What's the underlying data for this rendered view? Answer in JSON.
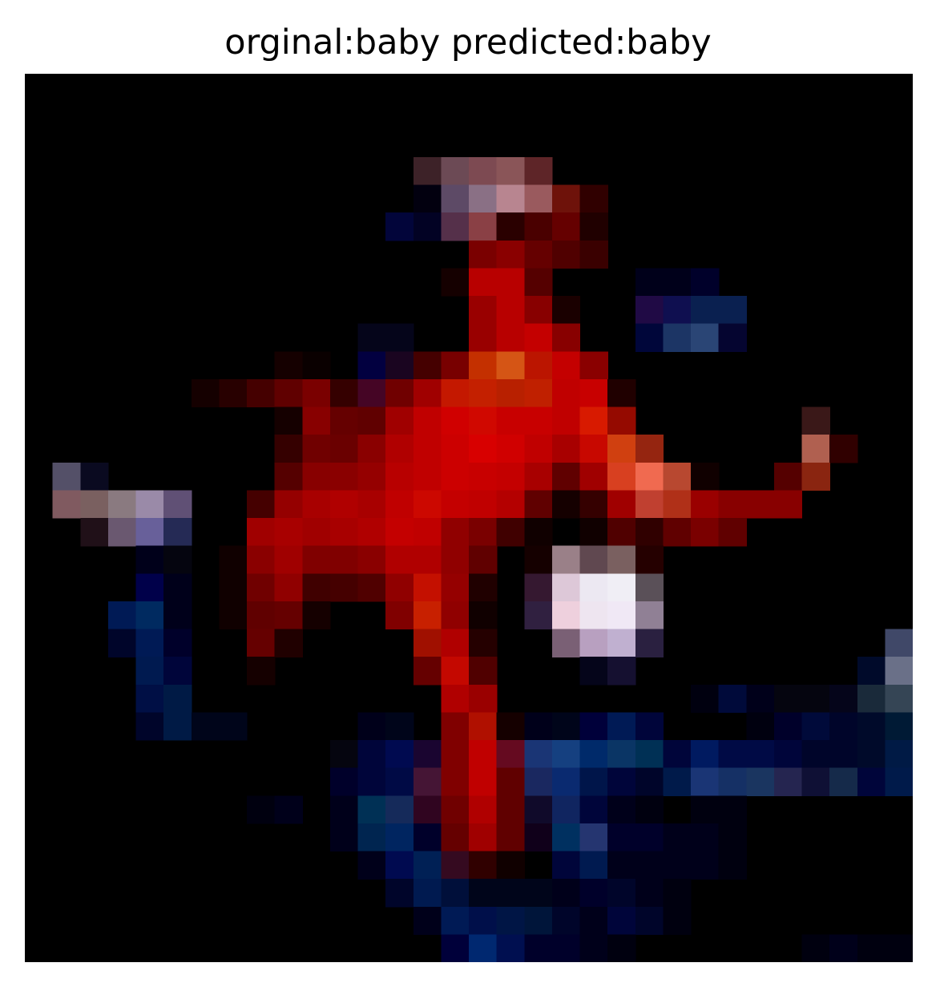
{
  "figure": {
    "title": "orginal:baby predicted:baby"
  },
  "image": {
    "subject": "pixelated low-resolution photo",
    "background_color": "#000000"
  }
}
